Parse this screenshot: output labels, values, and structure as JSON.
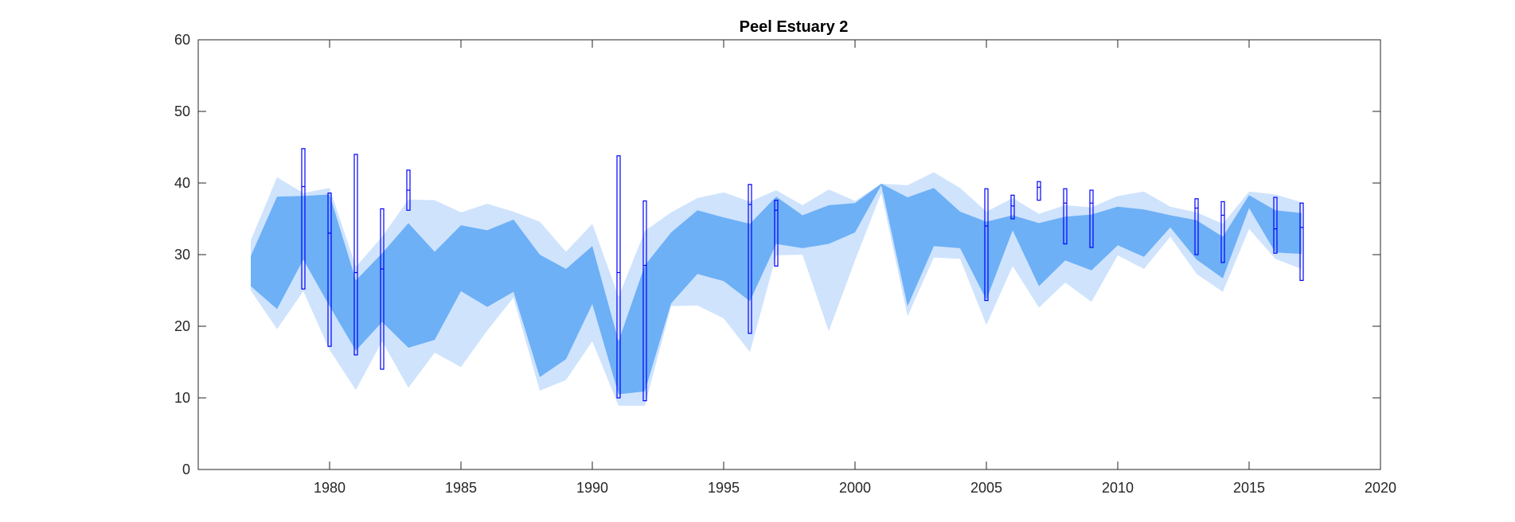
{
  "chart_data": {
    "type": "area",
    "title": "Peel Estuary 2",
    "xlabel": "",
    "ylabel": "",
    "xlim": [
      1975,
      2020
    ],
    "ylim": [
      0,
      60
    ],
    "xticks": [
      1980,
      1985,
      1990,
      1995,
      2000,
      2005,
      2010,
      2015,
      2020
    ],
    "yticks": [
      0,
      10,
      20,
      30,
      40,
      50,
      60
    ],
    "grid": false,
    "colors": {
      "outer_band": "#cfe3fd",
      "inner_band": "#6db0f6",
      "box": "#0000ff",
      "axis": "#262626"
    },
    "series": [
      {
        "kind": "band-outer",
        "x": [
          1977,
          1978,
          1979,
          1980,
          1981,
          1982,
          1983,
          1984,
          1985,
          1986,
          1987,
          1988,
          1989,
          1990,
          1991,
          1992,
          1993,
          1994,
          1995,
          1996,
          1997,
          1998,
          1999,
          2000,
          2001,
          2002,
          2003,
          2004,
          2005,
          2006,
          2007,
          2008,
          2009,
          2010,
          2011,
          2012,
          2013,
          2014,
          2015,
          2016,
          2017
        ],
        "upper": [
          32,
          40.8,
          38.6,
          39.3,
          28.3,
          32.5,
          37.7,
          37.6,
          35.9,
          37.1,
          36,
          34.6,
          30.4,
          34.3,
          24.1,
          33.3,
          35.9,
          37.9,
          38.7,
          37.4,
          39,
          36.9,
          39.1,
          37.5,
          39.9,
          39.7,
          41.5,
          39.3,
          36,
          37.9,
          35.7,
          36.9,
          36.6,
          38.2,
          38.8,
          36.7,
          35.9,
          34.3,
          38.8,
          38.4,
          37.3
        ],
        "lower": [
          25,
          19.6,
          24.9,
          16.7,
          11.1,
          17.9,
          11.4,
          16.3,
          14.3,
          19.4,
          24,
          11,
          12.5,
          17.9,
          8.9,
          8.9,
          22.8,
          22.9,
          21.1,
          16.4,
          29.9,
          30,
          19.3,
          29.2,
          38.6,
          21.4,
          29.6,
          29.4,
          20.2,
          28.4,
          22.6,
          26.1,
          23.4,
          29.9,
          28,
          32.5,
          27.3,
          24.8,
          33.6,
          29.4,
          28
        ]
      },
      {
        "kind": "band-inner",
        "x": [
          1977,
          1978,
          1979,
          1980,
          1981,
          1982,
          1983,
          1984,
          1985,
          1986,
          1987,
          1988,
          1989,
          1990,
          1991,
          1992,
          1993,
          1994,
          1995,
          1996,
          1997,
          1998,
          1999,
          2000,
          2001,
          2002,
          2003,
          2004,
          2005,
          2006,
          2007,
          2008,
          2009,
          2010,
          2011,
          2012,
          2013,
          2014,
          2015,
          2016,
          2017
        ],
        "upper": [
          29.8,
          38.1,
          38.2,
          38.4,
          26.4,
          30.2,
          34.4,
          30.4,
          34.1,
          33.4,
          34.9,
          30,
          28,
          31.2,
          17.9,
          28.5,
          33.1,
          36.2,
          35.2,
          34.3,
          38.1,
          35.5,
          36.9,
          37.2,
          39.9,
          38,
          39.3,
          36,
          34.6,
          35.5,
          34.4,
          35.3,
          35.6,
          36.7,
          36.3,
          35.5,
          34.8,
          32.5,
          38.3,
          36.2,
          35.8
        ],
        "lower": [
          25.6,
          22.4,
          29.3,
          22.8,
          16.6,
          20.6,
          17,
          18.1,
          24.9,
          22.7,
          24.8,
          12.9,
          15.4,
          23.1,
          10.5,
          10.9,
          23.2,
          27.3,
          26.3,
          23.5,
          31.5,
          30.9,
          31.5,
          33.1,
          39.7,
          22.8,
          31.2,
          30.9,
          23.7,
          33.4,
          25.6,
          29.2,
          27.8,
          31.3,
          29.7,
          33.8,
          29.3,
          26.7,
          36.5,
          30.3,
          30.1
        ]
      },
      {
        "kind": "boxes",
        "name": "",
        "boxes": [
          {
            "x": 1979,
            "low": 25.2,
            "high": 44.8,
            "median": 39.5
          },
          {
            "x": 1980,
            "low": 17.2,
            "high": 38.6,
            "median": 33
          },
          {
            "x": 1981,
            "low": 16,
            "high": 44,
            "median": 27.5
          },
          {
            "x": 1982,
            "low": 14,
            "high": 36.4,
            "median": 28
          },
          {
            "x": 1983,
            "low": 36.2,
            "high": 41.8,
            "median": 39
          },
          {
            "x": 1991,
            "low": 10,
            "high": 43.8,
            "median": 27.5
          },
          {
            "x": 1992,
            "low": 9.6,
            "high": 37.5,
            "median": 28.5
          },
          {
            "x": 1996,
            "low": 19,
            "high": 39.8,
            "median": 37
          },
          {
            "x": 1997,
            "low": 28.4,
            "high": 37.6,
            "median": 36.2
          },
          {
            "x": 2005,
            "low": 23.6,
            "high": 39.2,
            "median": 34
          },
          {
            "x": 2006,
            "low": 35,
            "high": 38.3,
            "median": 36.8
          },
          {
            "x": 2007,
            "low": 37.6,
            "high": 40.2,
            "median": 39.4
          },
          {
            "x": 2008,
            "low": 31.5,
            "high": 39.2,
            "median": 37.2
          },
          {
            "x": 2009,
            "low": 31,
            "high": 39,
            "median": 37.2
          },
          {
            "x": 2013,
            "low": 30,
            "high": 37.8,
            "median": 36.5
          },
          {
            "x": 2014,
            "low": 28.9,
            "high": 37.4,
            "median": 35.5
          },
          {
            "x": 2016,
            "low": 30.2,
            "high": 38,
            "median": 33.6
          },
          {
            "x": 2017,
            "low": 26.4,
            "high": 37.2,
            "median": 33.8
          }
        ]
      }
    ]
  }
}
